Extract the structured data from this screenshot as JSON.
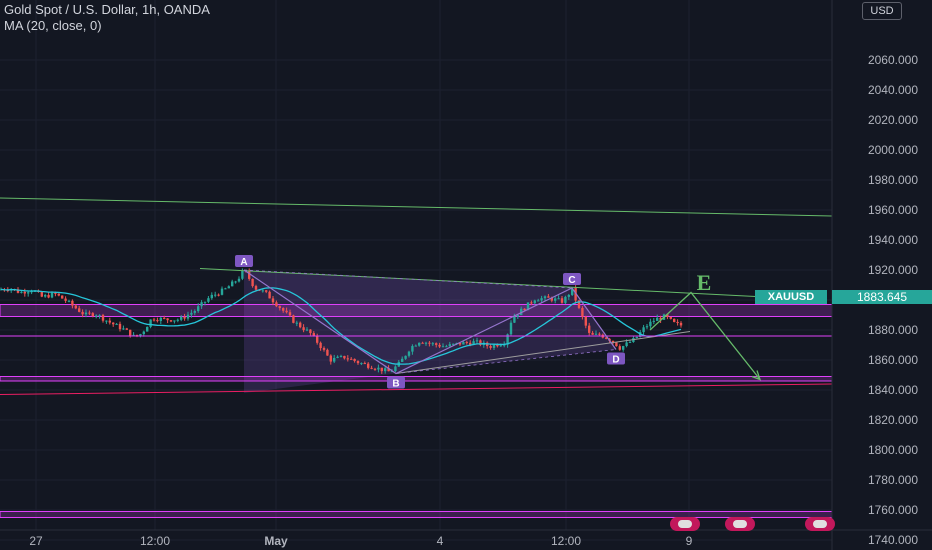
{
  "legend": {
    "line1": "Gold Spot / U.S. Dollar, 1h, OANDA",
    "line2": "MA (20, close, 0)"
  },
  "currency_label": "USD",
  "symbol_tag": "XAUUSD",
  "last_price_label": "1883.645",
  "colors": {
    "background": "#131722",
    "up": "#26a69a",
    "down": "#ef5350",
    "ma": "#26c6da",
    "pattern_fill": "#7e57c2",
    "magenta": "#e040fb",
    "channel": "#66bb6a",
    "support": "#e91e63"
  },
  "chart_data": {
    "type": "candlestick",
    "ylim": [
      1725,
      2075
    ],
    "y_ticks": [
      "2060.000",
      "2040.000",
      "2020.000",
      "2000.000",
      "1980.000",
      "1960.000",
      "1940.000",
      "1920.000",
      "1900.000",
      "1880.000",
      "1860.000",
      "1840.000",
      "1820.000",
      "1800.000",
      "1780.000",
      "1760.000",
      "1740.000"
    ],
    "x_ticks": [
      "27",
      "12:00",
      "May",
      "4",
      "12:00",
      "9"
    ],
    "series": [
      {
        "name": "MA (20, close, 0)",
        "type": "line"
      }
    ],
    "harmonic_points": [
      {
        "label": "A",
        "value": 1920
      },
      {
        "label": "B",
        "value": 1851
      },
      {
        "label": "C",
        "value": 1908
      },
      {
        "label": "D",
        "value": 1867
      }
    ],
    "projection_symbol": "E",
    "keypoints": [
      [
        0,
        1907
      ],
      [
        10,
        1908
      ],
      [
        20,
        1905
      ],
      [
        32,
        1907
      ],
      [
        42,
        1902
      ],
      [
        55,
        1904
      ],
      [
        65,
        1900
      ],
      [
        75,
        1895
      ],
      [
        85,
        1890
      ],
      [
        95,
        1891
      ],
      [
        110,
        1885
      ],
      [
        125,
        1880
      ],
      [
        135,
        1875
      ],
      [
        142,
        1878
      ],
      [
        152,
        1888
      ],
      [
        165,
        1887
      ],
      [
        180,
        1887
      ],
      [
        195,
        1893
      ],
      [
        210,
        1902
      ],
      [
        225,
        1907
      ],
      [
        238,
        1914
      ],
      [
        244,
        1920
      ],
      [
        255,
        1908
      ],
      [
        265,
        1905
      ],
      [
        280,
        1895
      ],
      [
        295,
        1885
      ],
      [
        310,
        1878
      ],
      [
        322,
        1868
      ],
      [
        330,
        1860
      ],
      [
        345,
        1862
      ],
      [
        360,
        1858
      ],
      [
        375,
        1855
      ],
      [
        390,
        1852
      ],
      [
        400,
        1858
      ],
      [
        410,
        1868
      ],
      [
        420,
        1873
      ],
      [
        430,
        1871
      ],
      [
        445,
        1869
      ],
      [
        460,
        1871
      ],
      [
        475,
        1872
      ],
      [
        490,
        1869
      ],
      [
        505,
        1872
      ],
      [
        512,
        1888
      ],
      [
        525,
        1895
      ],
      [
        535,
        1901
      ],
      [
        550,
        1901
      ],
      [
        563,
        1899
      ],
      [
        572,
        1907
      ],
      [
        580,
        1892
      ],
      [
        590,
        1876
      ],
      [
        600,
        1877
      ],
      [
        612,
        1873
      ],
      [
        620,
        1868
      ],
      [
        635,
        1874
      ],
      [
        645,
        1882
      ],
      [
        655,
        1887
      ],
      [
        665,
        1889
      ],
      [
        675,
        1884
      ],
      [
        682,
        1883
      ]
    ]
  }
}
